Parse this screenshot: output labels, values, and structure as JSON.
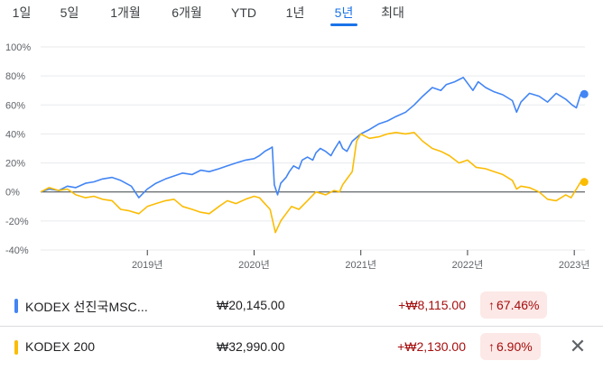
{
  "range_tabs": [
    "1일",
    "5일",
    "1개월",
    "6개월",
    "YTD",
    "1년",
    "5년",
    "최대"
  ],
  "active_tab": "5년",
  "accent_color": "#1a73e8",
  "chart_data": {
    "type": "line",
    "y_tick_labels": [
      "100%",
      "80%",
      "60%",
      "40%",
      "20%",
      "0%",
      "-20%",
      "-40%"
    ],
    "x_tick_labels": [
      "2019년",
      "2020년",
      "2021년",
      "2022년",
      "2023년"
    ],
    "ylim": [
      -40,
      100
    ],
    "xlim": [
      2018.0,
      2023.1
    ],
    "x_ticks": [
      2019,
      2020,
      2021,
      2022,
      2023
    ],
    "grid": "horizontal",
    "zero_line": 0,
    "series": [
      {
        "name": "KODEX 선진국MSC...",
        "color": "#4285f4",
        "points": [
          [
            2018.0,
            0
          ],
          [
            2018.08,
            2
          ],
          [
            2018.17,
            1
          ],
          [
            2018.25,
            4
          ],
          [
            2018.33,
            3
          ],
          [
            2018.42,
            6
          ],
          [
            2018.5,
            7
          ],
          [
            2018.58,
            9
          ],
          [
            2018.67,
            10
          ],
          [
            2018.75,
            8
          ],
          [
            2018.85,
            4
          ],
          [
            2018.92,
            -4
          ],
          [
            2019.0,
            2
          ],
          [
            2019.08,
            6
          ],
          [
            2019.17,
            9
          ],
          [
            2019.25,
            11
          ],
          [
            2019.33,
            13
          ],
          [
            2019.42,
            12
          ],
          [
            2019.5,
            15
          ],
          [
            2019.58,
            14
          ],
          [
            2019.67,
            16
          ],
          [
            2019.75,
            18
          ],
          [
            2019.83,
            20
          ],
          [
            2019.92,
            22
          ],
          [
            2020.0,
            23
          ],
          [
            2020.05,
            25
          ],
          [
            2020.1,
            28
          ],
          [
            2020.15,
            30
          ],
          [
            2020.17,
            31
          ],
          [
            2020.19,
            5
          ],
          [
            2020.22,
            -2
          ],
          [
            2020.25,
            6
          ],
          [
            2020.3,
            10
          ],
          [
            2020.33,
            14
          ],
          [
            2020.37,
            18
          ],
          [
            2020.42,
            16
          ],
          [
            2020.45,
            22
          ],
          [
            2020.5,
            24
          ],
          [
            2020.55,
            22
          ],
          [
            2020.58,
            27
          ],
          [
            2020.62,
            30
          ],
          [
            2020.67,
            28
          ],
          [
            2020.72,
            25
          ],
          [
            2020.75,
            29
          ],
          [
            2020.8,
            35
          ],
          [
            2020.83,
            30
          ],
          [
            2020.87,
            28
          ],
          [
            2020.92,
            35
          ],
          [
            2021.0,
            40
          ],
          [
            2021.08,
            43
          ],
          [
            2021.17,
            47
          ],
          [
            2021.25,
            49
          ],
          [
            2021.33,
            52
          ],
          [
            2021.42,
            55
          ],
          [
            2021.5,
            60
          ],
          [
            2021.58,
            66
          ],
          [
            2021.67,
            72
          ],
          [
            2021.75,
            70
          ],
          [
            2021.8,
            74
          ],
          [
            2021.88,
            76
          ],
          [
            2021.96,
            79
          ],
          [
            2022.05,
            70
          ],
          [
            2022.1,
            76
          ],
          [
            2022.17,
            72
          ],
          [
            2022.25,
            69
          ],
          [
            2022.33,
            67
          ],
          [
            2022.42,
            63
          ],
          [
            2022.46,
            55
          ],
          [
            2022.5,
            62
          ],
          [
            2022.58,
            68
          ],
          [
            2022.67,
            66
          ],
          [
            2022.75,
            62
          ],
          [
            2022.83,
            68
          ],
          [
            2022.92,
            64
          ],
          [
            2022.98,
            60
          ],
          [
            2023.02,
            58
          ],
          [
            2023.06,
            67.5
          ]
        ],
        "last_value": 67.46
      },
      {
        "name": "KODEX 200",
        "color": "#fbbc04",
        "points": [
          [
            2018.0,
            0
          ],
          [
            2018.08,
            3
          ],
          [
            2018.17,
            1
          ],
          [
            2018.25,
            2
          ],
          [
            2018.33,
            -2
          ],
          [
            2018.42,
            -4
          ],
          [
            2018.5,
            -3
          ],
          [
            2018.58,
            -5
          ],
          [
            2018.67,
            -6
          ],
          [
            2018.75,
            -12
          ],
          [
            2018.83,
            -13
          ],
          [
            2018.92,
            -15
          ],
          [
            2019.0,
            -10
          ],
          [
            2019.08,
            -8
          ],
          [
            2019.17,
            -6
          ],
          [
            2019.25,
            -5
          ],
          [
            2019.33,
            -10
          ],
          [
            2019.42,
            -12
          ],
          [
            2019.5,
            -14
          ],
          [
            2019.58,
            -15
          ],
          [
            2019.67,
            -10
          ],
          [
            2019.75,
            -6
          ],
          [
            2019.83,
            -8
          ],
          [
            2019.92,
            -5
          ],
          [
            2020.0,
            -3
          ],
          [
            2020.05,
            -4
          ],
          [
            2020.1,
            -8
          ],
          [
            2020.15,
            -12
          ],
          [
            2020.2,
            -28
          ],
          [
            2020.25,
            -20
          ],
          [
            2020.3,
            -15
          ],
          [
            2020.35,
            -10
          ],
          [
            2020.42,
            -12
          ],
          [
            2020.5,
            -6
          ],
          [
            2020.58,
            0
          ],
          [
            2020.67,
            -2
          ],
          [
            2020.75,
            1
          ],
          [
            2020.8,
            0
          ],
          [
            2020.83,
            5
          ],
          [
            2020.88,
            10
          ],
          [
            2020.92,
            14
          ],
          [
            2020.96,
            35
          ],
          [
            2021.0,
            40
          ],
          [
            2021.08,
            37
          ],
          [
            2021.17,
            38
          ],
          [
            2021.25,
            40
          ],
          [
            2021.33,
            41
          ],
          [
            2021.42,
            40
          ],
          [
            2021.5,
            41
          ],
          [
            2021.58,
            35
          ],
          [
            2021.67,
            30
          ],
          [
            2021.75,
            28
          ],
          [
            2021.83,
            25
          ],
          [
            2021.92,
            20
          ],
          [
            2022.0,
            22
          ],
          [
            2022.08,
            17
          ],
          [
            2022.17,
            16
          ],
          [
            2022.25,
            14
          ],
          [
            2022.33,
            12
          ],
          [
            2022.42,
            8
          ],
          [
            2022.46,
            2
          ],
          [
            2022.5,
            4
          ],
          [
            2022.58,
            3
          ],
          [
            2022.67,
            0
          ],
          [
            2022.75,
            -5
          ],
          [
            2022.83,
            -6
          ],
          [
            2022.92,
            -2
          ],
          [
            2022.97,
            -4
          ],
          [
            2023.02,
            2
          ],
          [
            2023.06,
            6.9
          ]
        ],
        "last_value": 6.9
      }
    ]
  },
  "legend": [
    {
      "color": "#4285f4",
      "name": "KODEX 선진국MSC...",
      "price": "₩20,145.00",
      "change": "+₩8,115.00",
      "pct": "67.46%",
      "arrow": "↑"
    },
    {
      "color": "#fbbc04",
      "name": "KODEX 200",
      "price": "₩32,990.00",
      "change": "+₩2,130.00",
      "pct": "6.90%",
      "arrow": "↑",
      "remove_icon": "✕"
    }
  ]
}
